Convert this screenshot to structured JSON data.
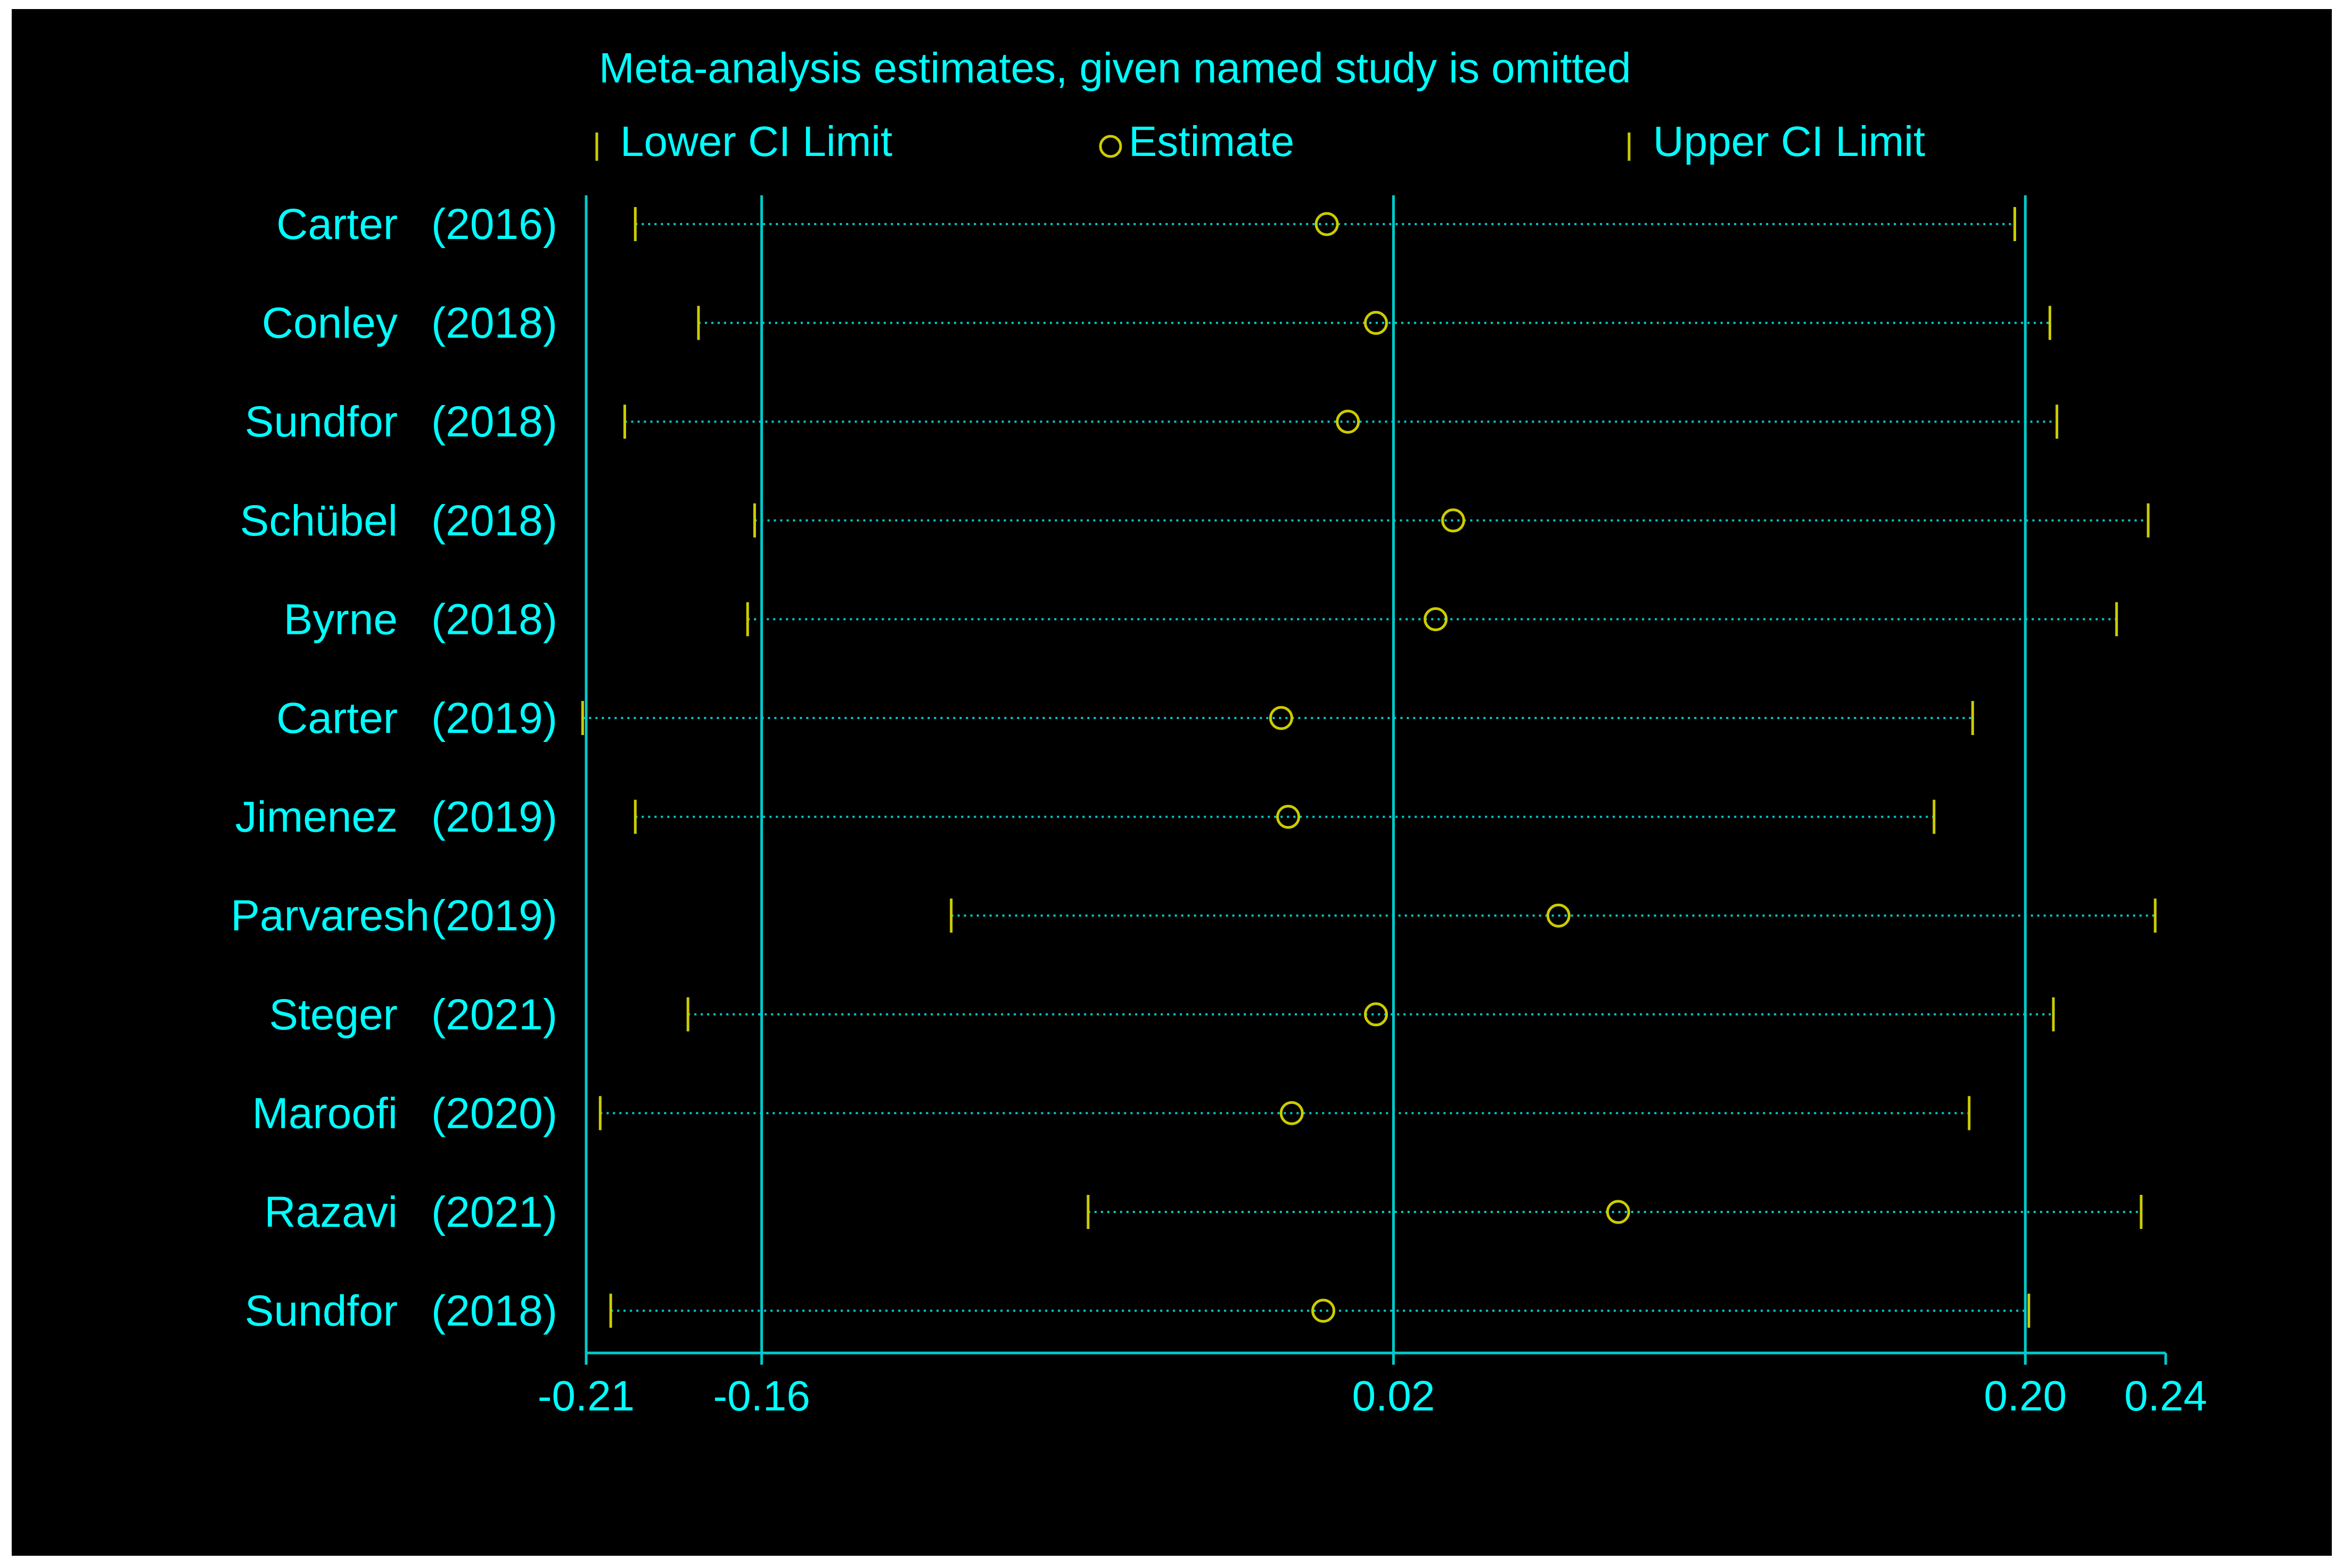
{
  "chart_data": {
    "type": "forest",
    "title": "Meta-analysis estimates, given named study is omitted",
    "legend": {
      "lower": "Lower CI Limit",
      "estimate": "Estimate",
      "upper": "Upper CI Limit",
      "placement": "top"
    },
    "xlim": [
      -0.21,
      0.24
    ],
    "x_ticks": [
      "-0.21",
      "-0.16",
      "0.02",
      "0.20",
      "0.24"
    ],
    "x_tick_values": [
      -0.21,
      -0.16,
      0.02,
      0.2,
      0.24
    ],
    "reference_lines": [
      -0.16,
      0.02,
      0.2
    ],
    "studies": [
      {
        "name": "Carter",
        "year": "(2016)",
        "lower": -0.196,
        "estimate": 0.001,
        "upper": 0.197
      },
      {
        "name": "Conley",
        "year": "(2018)",
        "lower": -0.178,
        "estimate": 0.015,
        "upper": 0.207
      },
      {
        "name": "Sundfor",
        "year": "(2018)",
        "lower": -0.199,
        "estimate": 0.007,
        "upper": 0.209
      },
      {
        "name": "Schübel",
        "year": "(2018)",
        "lower": -0.162,
        "estimate": 0.037,
        "upper": 0.235
      },
      {
        "name": "Byrne",
        "year": "(2018)",
        "lower": -0.164,
        "estimate": 0.032,
        "upper": 0.226
      },
      {
        "name": "Carter",
        "year": "(2019)",
        "lower": -0.211,
        "estimate": -0.012,
        "upper": 0.185
      },
      {
        "name": "Jimenez",
        "year": "(2019)",
        "lower": -0.196,
        "estimate": -0.01,
        "upper": 0.174
      },
      {
        "name": "Parvaresh",
        "year": "(2019)",
        "lower": -0.106,
        "estimate": 0.067,
        "upper": 0.237
      },
      {
        "name": "Steger",
        "year": "(2021)",
        "lower": -0.181,
        "estimate": 0.015,
        "upper": 0.208
      },
      {
        "name": "Maroofi",
        "year": "(2020)",
        "lower": -0.206,
        "estimate": -0.009,
        "upper": 0.184
      },
      {
        "name": "Razavi",
        "year": "(2021)",
        "lower": -0.067,
        "estimate": 0.084,
        "upper": 0.233
      },
      {
        "name": "Sundfor",
        "year": "(2018)",
        "lower": -0.203,
        "estimate": 0.0,
        "upper": 0.201
      }
    ],
    "colors": {
      "background": "#000000",
      "axis": "#00cccc",
      "text": "#00ffff",
      "marker": "#cccc00",
      "dotted": "#00cccc"
    }
  }
}
